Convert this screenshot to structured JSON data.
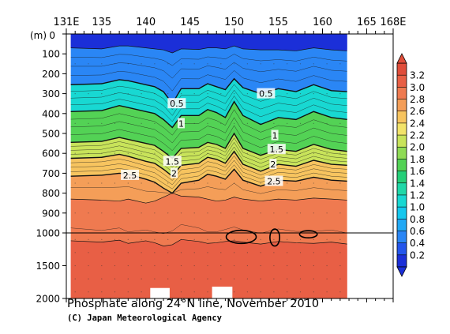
{
  "chart_data": {
    "type": "heatmap",
    "title": "Phosphate along 24°N line, November 2010",
    "credit": "(C) Japan Meteorological Agency",
    "y_unit": "(m)",
    "x_ticks": [
      "131E",
      "135",
      "140",
      "145",
      "150",
      "155",
      "160",
      "165",
      "168E"
    ],
    "x_tick_values": [
      131,
      135,
      140,
      145,
      150,
      155,
      160,
      165,
      168
    ],
    "xlim": [
      131,
      168
    ],
    "y_ticks": [
      "0",
      "100",
      "200",
      "300",
      "400",
      "500",
      "600",
      "700",
      "800",
      "900",
      "1000",
      "1500",
      "2000"
    ],
    "y_tick_values": [
      0,
      100,
      200,
      300,
      400,
      500,
      600,
      700,
      800,
      900,
      1000,
      1500,
      2000
    ],
    "ylim": [
      0,
      2000
    ],
    "y_axis_note": "depth axis is linear from 0 to 1000 m and compressed from 1000 to 2000 m",
    "data_extent_x": [
      131.5,
      162.8
    ],
    "colorbar": {
      "levels": [
        "0.2",
        "0.4",
        "0.6",
        "0.8",
        "1.0",
        "1.2",
        "1.4",
        "1.6",
        "1.8",
        "2.0",
        "2.2",
        "2.4",
        "2.6",
        "2.8",
        "3.0",
        "3.2"
      ],
      "colors": [
        "#1b2fd8",
        "#2355ec",
        "#2a86f5",
        "#22a9f5",
        "#15c7ee",
        "#18d8d2",
        "#1fd8a8",
        "#25cf78",
        "#53d255",
        "#8fdb55",
        "#c8e35a",
        "#f2e36a",
        "#f7c45f",
        "#f49e58",
        "#ef7a50",
        "#e85f45",
        "#e04d3a"
      ],
      "has_end_arrows": true
    },
    "contour_labels": [
      {
        "text": "0.5",
        "x": 143.5,
        "depth": 350
      },
      {
        "text": "0.5",
        "x": 153.6,
        "depth": 300
      },
      {
        "text": "1",
        "x": 144.0,
        "depth": 450
      },
      {
        "text": "1",
        "x": 154.6,
        "depth": 510
      },
      {
        "text": "1.5",
        "x": 143.0,
        "depth": 640
      },
      {
        "text": "1.5",
        "x": 154.8,
        "depth": 580
      },
      {
        "text": "2",
        "x": 143.2,
        "depth": 700
      },
      {
        "text": "2",
        "x": 154.4,
        "depth": 655
      },
      {
        "text": "2.5",
        "x": 138.2,
        "depth": 710
      },
      {
        "text": "2.5",
        "x": 154.5,
        "depth": 740
      }
    ],
    "contour_lines": [
      {
        "level": 0.2,
        "x": [
          131.5,
          135,
          137,
          138,
          140,
          141,
          142,
          143,
          144,
          146,
          147,
          148,
          149,
          150,
          151,
          153,
          155,
          157,
          159,
          161,
          162.8
        ],
        "depth": [
          70,
          75,
          60,
          60,
          70,
          75,
          80,
          95,
          75,
          78,
          70,
          70,
          75,
          60,
          75,
          80,
          80,
          85,
          70,
          80,
          85
        ]
      },
      {
        "level": 0.5,
        "x": [
          131.5,
          135,
          137,
          138,
          140,
          141,
          142,
          143,
          144,
          146,
          147,
          148,
          149,
          150,
          151,
          153,
          155,
          157,
          159,
          161,
          162.8
        ],
        "depth": [
          255,
          250,
          230,
          235,
          255,
          265,
          290,
          350,
          275,
          275,
          250,
          265,
          280,
          225,
          270,
          300,
          275,
          290,
          255,
          285,
          290
        ]
      },
      {
        "level": 1.0,
        "x": [
          131.5,
          135,
          137,
          138,
          140,
          141,
          142,
          143,
          144,
          146,
          147,
          148,
          149,
          150,
          151,
          153,
          155,
          157,
          159,
          161,
          162.8
        ],
        "depth": [
          390,
          385,
          360,
          370,
          390,
          400,
          430,
          470,
          410,
          410,
          380,
          395,
          420,
          340,
          410,
          455,
          420,
          430,
          390,
          420,
          430
        ]
      },
      {
        "level": 1.5,
        "x": [
          131.5,
          135,
          137,
          138,
          140,
          141,
          142,
          143,
          144,
          146,
          147,
          148,
          149,
          150,
          151,
          153,
          155,
          157,
          159,
          161,
          162.8
        ],
        "depth": [
          545,
          540,
          520,
          530,
          550,
          560,
          590,
          625,
          575,
          570,
          545,
          555,
          575,
          500,
          575,
          610,
          580,
          590,
          555,
          580,
          590
        ]
      },
      {
        "level": 2.0,
        "x": [
          131.5,
          135,
          137,
          138,
          140,
          141,
          142,
          143,
          144,
          146,
          147,
          148,
          149,
          150,
          151,
          153,
          155,
          157,
          159,
          161,
          162.8
        ],
        "depth": [
          625,
          620,
          605,
          615,
          640,
          650,
          680,
          715,
          660,
          650,
          620,
          630,
          650,
          590,
          655,
          690,
          655,
          665,
          635,
          655,
          660
        ]
      },
      {
        "level": 2.5,
        "x": [
          131.5,
          135,
          137,
          138,
          140,
          141,
          142,
          143,
          144,
          146,
          147,
          148,
          149,
          150,
          151,
          153,
          155,
          157,
          159,
          161,
          162.8
        ],
        "depth": [
          715,
          710,
          700,
          705,
          730,
          745,
          775,
          800,
          750,
          735,
          705,
          715,
          730,
          680,
          735,
          765,
          735,
          740,
          720,
          735,
          740
        ]
      },
      {
        "level": 2.8,
        "x": [
          131.5,
          135,
          137,
          138,
          140,
          141,
          142,
          143,
          144,
          146,
          147,
          148,
          149,
          150,
          151,
          153,
          155,
          157,
          159,
          161,
          162.8
        ],
        "depth": [
          830,
          835,
          840,
          830,
          850,
          840,
          820,
          800,
          815,
          820,
          830,
          840,
          835,
          820,
          830,
          840,
          830,
          835,
          825,
          830,
          835
        ]
      },
      {
        "level": 3.0,
        "x": [
          131.5,
          135,
          137,
          138,
          140,
          141,
          142,
          143,
          144,
          146,
          147,
          148,
          149,
          150,
          151,
          153,
          155,
          157,
          159,
          161,
          162.8
        ],
        "depth": [
          1120,
          1140,
          1110,
          1160,
          1120,
          1150,
          1200,
          1180,
          1100,
          1130,
          1160,
          1150,
          1130,
          1120,
          1140,
          1170,
          1130,
          1150,
          1160,
          1140,
          1170
        ]
      }
    ],
    "closed_contours": [
      {
        "level": 3.0,
        "cx": 150.8,
        "cy": 1060,
        "rx": 1.7,
        "ry": 1.0
      },
      {
        "level": 3.0,
        "cx": 154.6,
        "cy": 1070,
        "rx": 0.55,
        "ry": 1.3
      },
      {
        "level": 3.0,
        "cx": 158.4,
        "cy": 1020,
        "rx": 1.0,
        "ry": 0.55
      }
    ],
    "reference_line_depth": 1000,
    "masked_regions": [
      {
        "x": [
          140.5,
          142.7
        ],
        "depth": [
          1840,
          2000
        ]
      },
      {
        "x": [
          147.5,
          149.8
        ],
        "depth": [
          1820,
          2000
        ]
      }
    ],
    "grid": false,
    "legend": "right colorbar"
  }
}
